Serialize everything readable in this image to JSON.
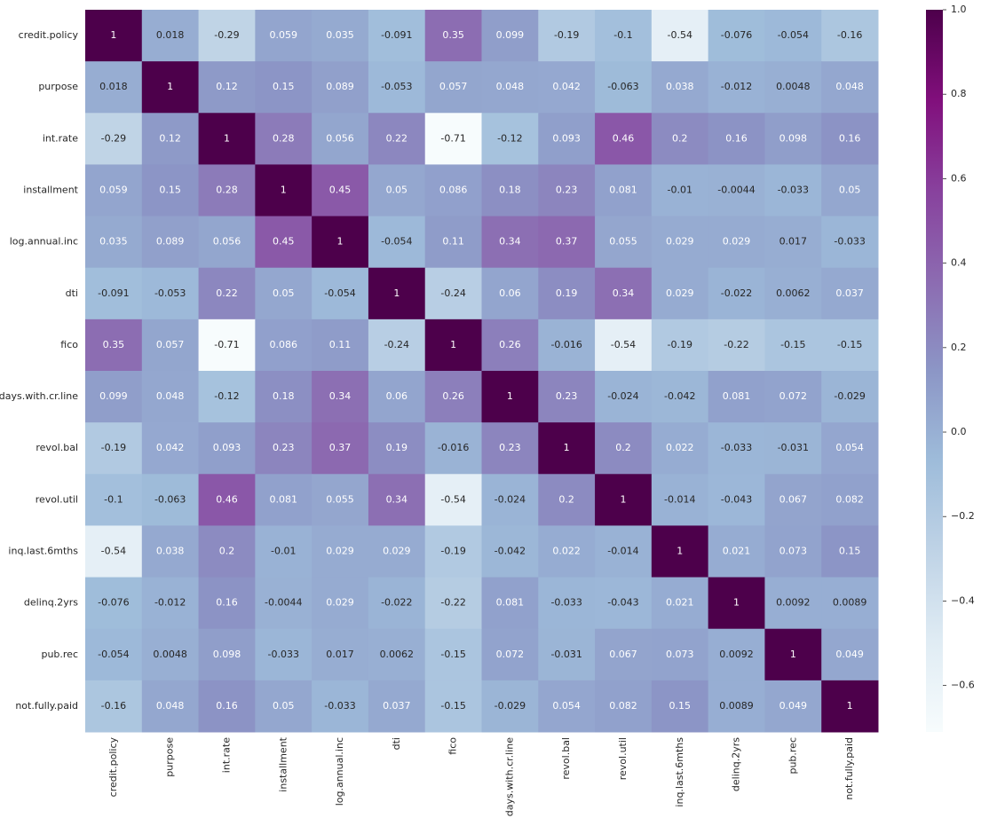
{
  "chart_data": {
    "type": "heatmap",
    "categories": [
      "credit.policy",
      "purpose",
      "int.rate",
      "installment",
      "log.annual.inc",
      "dti",
      "fico",
      "days.with.cr.line",
      "revol.bal",
      "revol.util",
      "inq.last.6mths",
      "delinq.2yrs",
      "pub.rec",
      "not.fully.paid"
    ],
    "values": [
      [
        1,
        0.018,
        -0.29,
        0.059,
        0.035,
        -0.091,
        0.35,
        0.099,
        -0.19,
        -0.1,
        -0.54,
        -0.076,
        -0.054,
        -0.16
      ],
      [
        0.018,
        1,
        0.12,
        0.15,
        0.089,
        -0.053,
        0.057,
        0.048,
        0.042,
        -0.063,
        0.038,
        -0.012,
        0.0048,
        0.048
      ],
      [
        -0.29,
        0.12,
        1,
        0.28,
        0.056,
        0.22,
        -0.71,
        -0.12,
        0.093,
        0.46,
        0.2,
        0.16,
        0.098,
        0.16
      ],
      [
        0.059,
        0.15,
        0.28,
        1,
        0.45,
        0.05,
        0.086,
        0.18,
        0.23,
        0.081,
        -0.01,
        -0.0044,
        -0.033,
        0.05
      ],
      [
        0.035,
        0.089,
        0.056,
        0.45,
        1,
        -0.054,
        0.11,
        0.34,
        0.37,
        0.055,
        0.029,
        0.029,
        0.017,
        -0.033
      ],
      [
        -0.091,
        -0.053,
        0.22,
        0.05,
        -0.054,
        1,
        -0.24,
        0.06,
        0.19,
        0.34,
        0.029,
        -0.022,
        0.0062,
        0.037
      ],
      [
        0.35,
        0.057,
        -0.71,
        0.086,
        0.11,
        -0.24,
        1,
        0.26,
        -0.016,
        -0.54,
        -0.19,
        -0.22,
        -0.15,
        -0.15
      ],
      [
        0.099,
        0.048,
        -0.12,
        0.18,
        0.34,
        0.06,
        0.26,
        1,
        0.23,
        -0.024,
        -0.042,
        0.081,
        0.072,
        -0.029
      ],
      [
        -0.19,
        0.042,
        0.093,
        0.23,
        0.37,
        0.19,
        -0.016,
        0.23,
        1,
        0.2,
        0.022,
        -0.033,
        -0.031,
        0.054
      ],
      [
        -0.1,
        -0.063,
        0.46,
        0.081,
        0.055,
        0.34,
        -0.54,
        -0.024,
        0.2,
        1,
        -0.014,
        -0.043,
        0.067,
        0.082
      ],
      [
        -0.54,
        0.038,
        0.2,
        -0.01,
        0.029,
        0.029,
        -0.19,
        -0.042,
        0.022,
        -0.014,
        1,
        0.021,
        0.073,
        0.15
      ],
      [
        -0.076,
        -0.012,
        0.16,
        -0.0044,
        0.029,
        -0.022,
        -0.22,
        0.081,
        -0.033,
        -0.043,
        0.021,
        1,
        0.0092,
        0.0089
      ],
      [
        -0.054,
        0.0048,
        0.098,
        -0.033,
        0.017,
        0.0062,
        -0.15,
        0.072,
        -0.031,
        0.067,
        0.073,
        0.0092,
        1,
        0.049
      ],
      [
        -0.16,
        0.048,
        0.16,
        0.05,
        -0.033,
        0.037,
        -0.15,
        -0.029,
        0.054,
        0.082,
        0.15,
        0.0089,
        0.049,
        1
      ]
    ],
    "colormap": [
      "#f7fcfd",
      "#e0ecf4",
      "#bfd3e6",
      "#9ebcda",
      "#8c96c6",
      "#8c6bb1",
      "#88419d",
      "#810f7c",
      "#4d004b"
    ],
    "clim": [
      -0.71,
      1
    ],
    "cticks": [
      {
        "value": 1.0,
        "label": "1.0"
      },
      {
        "value": 0.8,
        "label": "0.8"
      },
      {
        "value": 0.6,
        "label": "0.6"
      },
      {
        "value": 0.4,
        "label": "0.4"
      },
      {
        "value": 0.2,
        "label": "0.2"
      },
      {
        "value": 0.0,
        "label": "0.0"
      },
      {
        "value": -0.2,
        "label": "−0.2"
      },
      {
        "value": -0.4,
        "label": "−0.4"
      },
      {
        "value": -0.6,
        "label": "−0.6"
      }
    ]
  }
}
